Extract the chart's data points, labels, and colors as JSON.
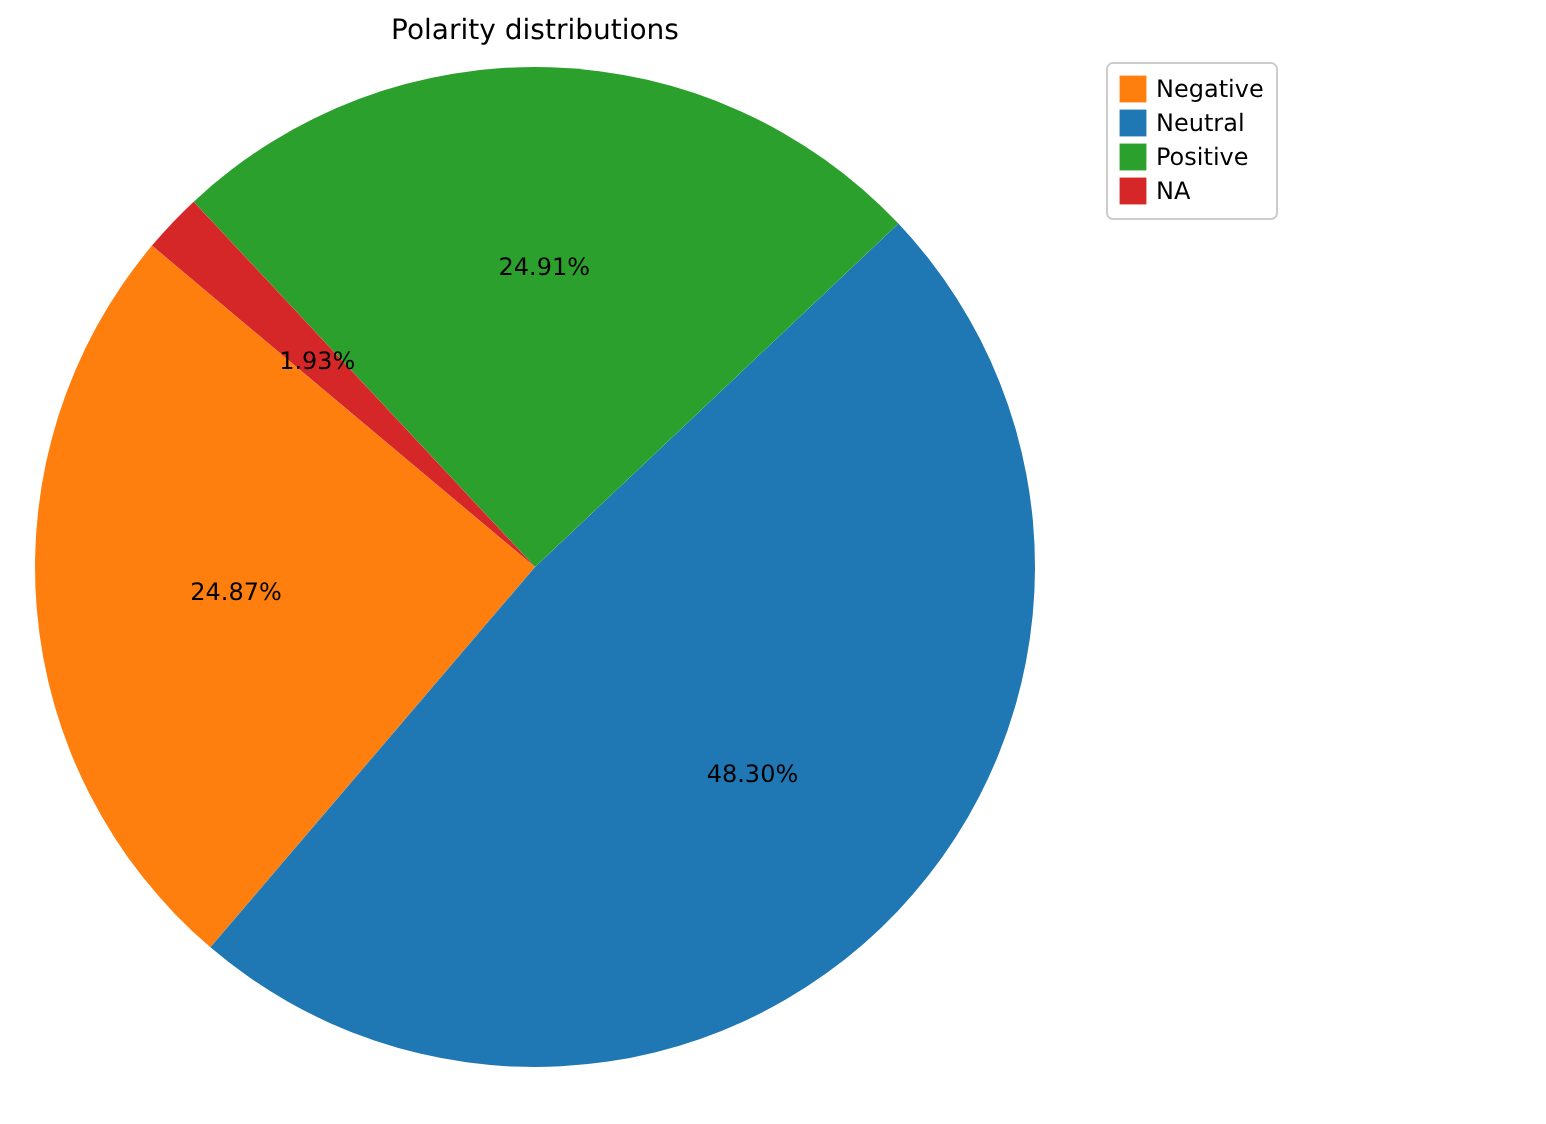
{
  "chart_data": {
    "type": "pie",
    "title": "Polarity distributions",
    "categories": [
      "Negative",
      "Neutral",
      "Positive",
      "NA"
    ],
    "values": [
      24.87,
      48.3,
      24.91,
      1.93
    ],
    "colors": [
      "#ff7f0e",
      "#1f77b4",
      "#2ca02c",
      "#d62728"
    ],
    "value_labels": [
      "24.87%",
      "48.30%",
      "24.91%",
      "1.93%"
    ],
    "legend": "right"
  }
}
